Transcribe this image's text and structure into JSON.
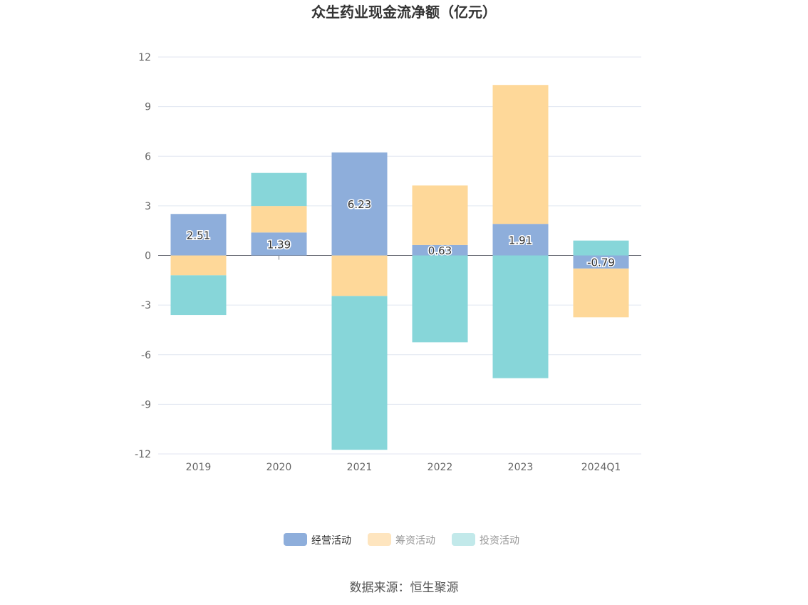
{
  "chart_data": {
    "type": "bar",
    "stacked": true,
    "title": "众生药业现金流净额（亿元）",
    "categories": [
      "2019",
      "2020",
      "2021",
      "2022",
      "2023",
      "2024Q1"
    ],
    "ylim": [
      -12,
      12
    ],
    "yticks": [
      12,
      9,
      6,
      3,
      0,
      -3,
      -6,
      -9,
      -12
    ],
    "grid": true,
    "legend_position": "bottom",
    "series": [
      {
        "name": "经营活动",
        "color": "#8eaedb",
        "values": [
          2.51,
          1.39,
          6.23,
          0.63,
          1.91,
          -0.79
        ],
        "show_labels": true
      },
      {
        "name": "筹资活动",
        "color": "#fed899",
        "values": [
          -1.2,
          1.6,
          -2.45,
          3.6,
          8.4,
          -2.95
        ]
      },
      {
        "name": "投资活动",
        "color": "#87d6d9",
        "values": [
          -2.4,
          2.0,
          -9.3,
          -5.25,
          -7.42,
          0.9
        ]
      }
    ],
    "source": "数据来源：恒生聚源"
  },
  "legend_colors": {
    "经营活动": "#8eaedb",
    "筹资活动": "#fee5bf",
    "投资活动": "#c2e9ea"
  }
}
